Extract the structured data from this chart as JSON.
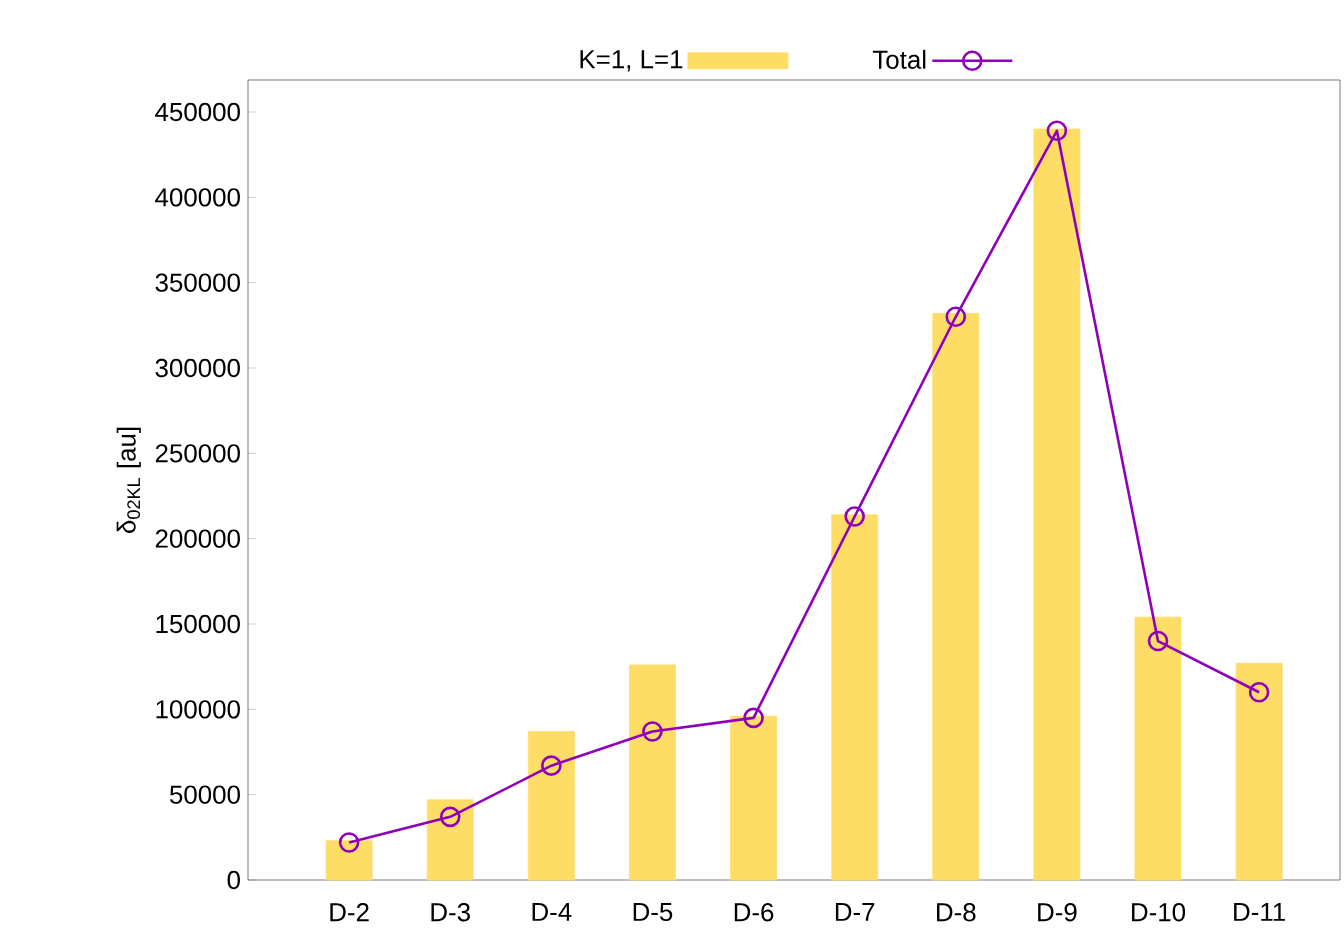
{
  "chart_data": {
    "type": "bar",
    "ylabel": "δ$_{02KL}$ [au]",
    "categories": [
      "D-2",
      "D-3",
      "D-4",
      "D-5",
      "D-6",
      "D-7",
      "D-8",
      "D-9",
      "D-10",
      "D-11"
    ],
    "series": [
      {
        "name": "K=1, L=1",
        "color": "#fedd66",
        "values": [
          23000,
          47000,
          87000,
          126000,
          96000,
          214000,
          332000,
          440000,
          154000,
          127000
        ]
      },
      {
        "name": "Total",
        "type": "line",
        "color": "#9000bb",
        "marker": "circle",
        "values": [
          22000,
          37000,
          67000,
          87000,
          95000,
          213000,
          330000,
          439000,
          140000,
          110000
        ]
      }
    ],
    "ylim": [
      0,
      468750
    ],
    "yticks": [
      0,
      50000,
      100000,
      150000,
      200000,
      250000,
      300000,
      350000,
      400000,
      450000
    ],
    "legend": "top",
    "grid": false
  }
}
